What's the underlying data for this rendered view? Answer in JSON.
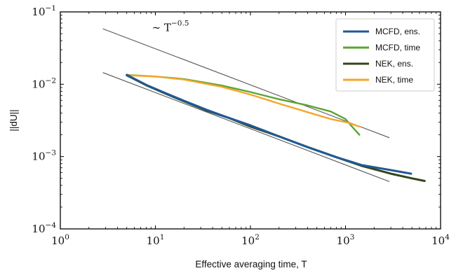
{
  "chart_data": {
    "type": "line",
    "xlabel": "Effective averaging time, T",
    "ylabel": "||dU||",
    "xscale": "log",
    "yscale": "log",
    "xlim": [
      1,
      10000
    ],
    "ylim": [
      0.0001,
      0.1
    ],
    "x_ticks": [
      {
        "base": "10",
        "exp": "0"
      },
      {
        "base": "10",
        "exp": "1"
      },
      {
        "base": "10",
        "exp": "2"
      },
      {
        "base": "10",
        "exp": "3"
      },
      {
        "base": "10",
        "exp": "4"
      }
    ],
    "y_ticks": [
      {
        "base": "10",
        "exp": "−4"
      },
      {
        "base": "10",
        "exp": "−3"
      },
      {
        "base": "10",
        "exp": "−2"
      },
      {
        "base": "10",
        "exp": "−1"
      }
    ],
    "legend_position": "top-right",
    "series": [
      {
        "name": "MCFD, ens.",
        "color": "#1f5a96",
        "x": [
          5,
          8,
          12,
          20,
          35,
          60,
          100,
          200,
          400,
          800,
          1500,
          3000,
          4900
        ],
        "y": [
          0.0135,
          0.0098,
          0.0078,
          0.0059,
          0.0044,
          0.0034,
          0.0027,
          0.0019,
          0.00135,
          0.00098,
          0.00076,
          0.00065,
          0.00058
        ]
      },
      {
        "name": "MCFD, time",
        "color": "#5aa532",
        "x": [
          5,
          10,
          20,
          50,
          100,
          200,
          400,
          700,
          1000,
          1200,
          1400
        ],
        "y": [
          0.0135,
          0.0128,
          0.0118,
          0.0096,
          0.0078,
          0.0062,
          0.0051,
          0.0042,
          0.0033,
          0.0025,
          0.002
        ]
      },
      {
        "name": "NEK, ens.",
        "color": "#33451a",
        "x": [
          5,
          8,
          12,
          20,
          35,
          60,
          100,
          200,
          400,
          800,
          1500,
          3000,
          5000,
          6800
        ],
        "y": [
          0.0133,
          0.0097,
          0.0077,
          0.0058,
          0.0043,
          0.0034,
          0.0026,
          0.0019,
          0.00135,
          0.00098,
          0.00074,
          0.00058,
          0.0005,
          0.00046
        ]
      },
      {
        "name": "NEK, time",
        "color": "#f5a62a",
        "x": [
          5,
          10,
          20,
          50,
          100,
          200,
          400,
          700,
          1000,
          1400
        ],
        "y": [
          0.0133,
          0.0128,
          0.0116,
          0.0092,
          0.0072,
          0.0054,
          0.0041,
          0.0033,
          0.003,
          0.0026
        ]
      }
    ],
    "reference_lines": [
      {
        "x": [
          2.8,
          2900
        ],
        "y": [
          0.0585,
          0.00182
        ],
        "color": "#555555"
      },
      {
        "x": [
          2.8,
          2900
        ],
        "y": [
          0.0145,
          0.00045
        ],
        "color": "#555555"
      }
    ],
    "annotation": {
      "x": 9.2,
      "y": 0.054,
      "prefix": "∼ T",
      "exp": "−0.5"
    }
  }
}
